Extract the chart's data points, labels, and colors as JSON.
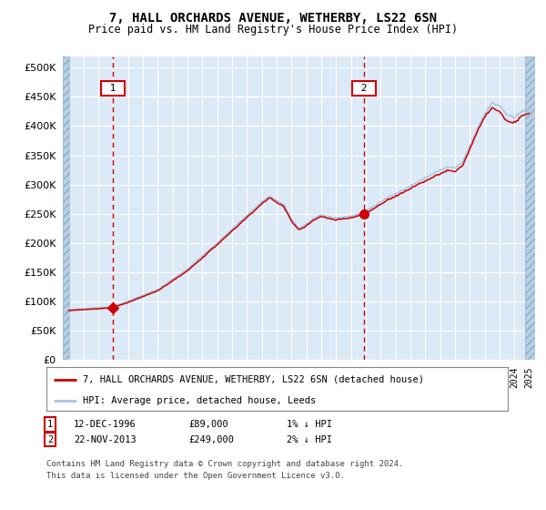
{
  "title": "7, HALL ORCHARDS AVENUE, WETHERBY, LS22 6SN",
  "subtitle": "Price paid vs. HM Land Registry's House Price Index (HPI)",
  "legend_line1": "7, HALL ORCHARDS AVENUE, WETHERBY, LS22 6SN (detached house)",
  "legend_line2": "HPI: Average price, detached house, Leeds",
  "annotation1": {
    "label": "1",
    "date_str": "12-DEC-1996",
    "price_str": "£89,000",
    "hpi_str": "1% ↓ HPI",
    "year": 1996.95
  },
  "annotation2": {
    "label": "2",
    "date_str": "22-NOV-2013",
    "price_str": "£249,000",
    "hpi_str": "2% ↓ HPI",
    "year": 2013.88
  },
  "footer": "Contains HM Land Registry data © Crown copyright and database right 2024.\nThis data is licensed under the Open Government Licence v3.0.",
  "ylim": [
    0,
    520000
  ],
  "yticks": [
    0,
    50000,
    100000,
    150000,
    200000,
    250000,
    300000,
    350000,
    400000,
    450000,
    500000
  ],
  "bg_color": "#dce9f7",
  "hatch_color": "#b8cfe0",
  "red_color": "#cc0000",
  "blue_color": "#aac4de",
  "grid_color": "#ffffff",
  "val1": 89000,
  "val2": 249000,
  "start_year": 1994,
  "end_year": 2025
}
